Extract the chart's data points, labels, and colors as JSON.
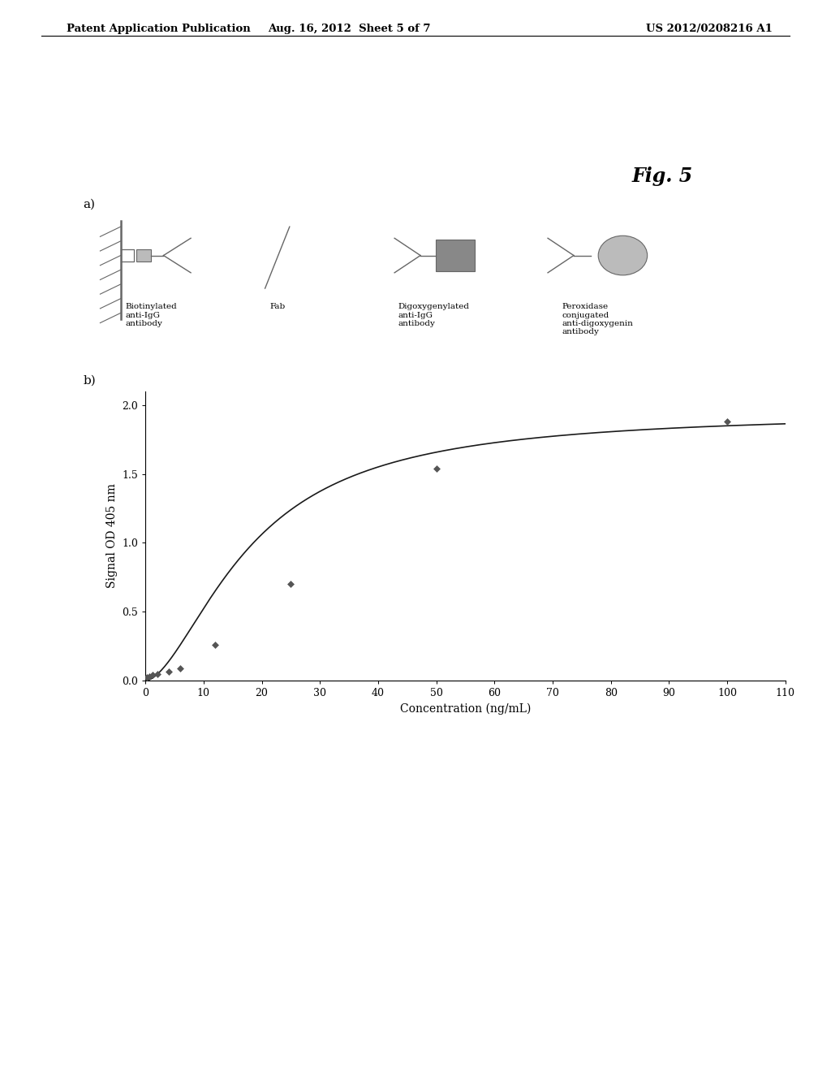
{
  "header_left": "Patent Application Publication",
  "header_mid": "Aug. 16, 2012  Sheet 5 of 7",
  "header_right": "US 2012/0208216 A1",
  "fig_label": "Fig. 5",
  "section_a_label": "a)",
  "section_b_label": "b)",
  "scatter_x": [
    0.3,
    0.6,
    1.2,
    2.0,
    4.0,
    6.0,
    12.0,
    25.0,
    50.0,
    100.0
  ],
  "scatter_y": [
    0.025,
    0.03,
    0.04,
    0.05,
    0.065,
    0.09,
    0.26,
    0.7,
    1.54,
    1.88
  ],
  "xlabel": "Concentration (ng/mL)",
  "ylabel": "Signal OD 405 nm",
  "xlim": [
    0,
    110
  ],
  "ylim": [
    0,
    2.1
  ],
  "xticks": [
    0,
    10,
    20,
    30,
    40,
    50,
    60,
    70,
    80,
    90,
    100,
    110
  ],
  "yticks": [
    0,
    0.5,
    1,
    1.5,
    2
  ],
  "bg_color": "#ffffff",
  "line_color": "#1a1a1a",
  "marker_color": "#555555",
  "Bmax": 1.95,
  "Kd": 18.0,
  "n": 1.7
}
